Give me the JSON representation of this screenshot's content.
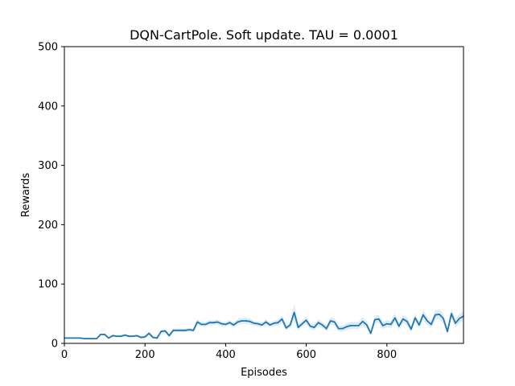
{
  "chart_data": {
    "type": "line",
    "title": "DQN-CartPole. Soft update. TAU = 0.0001",
    "xlabel": "Episodes",
    "ylabel": "Rewards",
    "xlim": [
      0,
      990
    ],
    "ylim": [
      0,
      500
    ],
    "xticks": [
      0,
      200,
      400,
      600,
      800
    ],
    "yticks": [
      0,
      100,
      200,
      300,
      400,
      500
    ],
    "grid": false,
    "line_color": "#1f77b4",
    "band_color": "#1f77b4",
    "series": [
      {
        "x": [
          0,
          10,
          20,
          30,
          40,
          50,
          60,
          70,
          80,
          90,
          100,
          110,
          120,
          130,
          140,
          150,
          160,
          170,
          180,
          190,
          200,
          210,
          220,
          230,
          240,
          250,
          260,
          270,
          280,
          290,
          300,
          310,
          320,
          330,
          340,
          350,
          360,
          370,
          380,
          390,
          400,
          410,
          420,
          430,
          440,
          450,
          460,
          470,
          480,
          490,
          500,
          510,
          520,
          530,
          540,
          550,
          560,
          570,
          580,
          590,
          600,
          610,
          620,
          630,
          640,
          650,
          660,
          670,
          680,
          690,
          700,
          710,
          720,
          730,
          740,
          750,
          760,
          770,
          780,
          790,
          800,
          810,
          820,
          830,
          840,
          850,
          860,
          870,
          880,
          890,
          900,
          910,
          920,
          930,
          940,
          950,
          960,
          970,
          980,
          990
        ],
        "y": [
          9,
          9,
          9,
          9,
          9,
          8,
          8,
          8,
          8,
          15,
          15,
          9,
          13,
          12,
          12,
          14,
          12,
          12,
          13,
          10,
          11,
          17,
          10,
          9,
          20,
          21,
          13,
          22,
          22,
          22,
          22,
          23,
          22,
          36,
          32,
          32,
          35,
          35,
          36,
          33,
          32,
          35,
          31,
          36,
          38,
          38,
          37,
          34,
          33,
          31,
          36,
          31,
          34,
          35,
          41,
          26,
          31,
          52,
          27,
          33,
          39,
          29,
          27,
          35,
          31,
          25,
          38,
          36,
          25,
          25,
          28,
          30,
          30,
          30,
          37,
          31,
          17,
          40,
          41,
          30,
          33,
          32,
          43,
          29,
          41,
          37,
          24,
          43,
          31,
          48,
          38,
          32,
          48,
          49,
          42,
          20,
          50,
          34,
          42,
          46
        ],
        "err": [
          1,
          1,
          1,
          1,
          1,
          1,
          1,
          1,
          1,
          2,
          2,
          1,
          2,
          2,
          2,
          2,
          2,
          2,
          2,
          2,
          2,
          3,
          2,
          2,
          3,
          3,
          2,
          3,
          3,
          3,
          3,
          3,
          3,
          5,
          4,
          4,
          4,
          4,
          4,
          4,
          4,
          4,
          4,
          5,
          5,
          5,
          5,
          4,
          4,
          4,
          5,
          4,
          4,
          5,
          6,
          4,
          5,
          14,
          5,
          5,
          6,
          5,
          5,
          6,
          5,
          5,
          6,
          6,
          5,
          5,
          6,
          6,
          6,
          6,
          7,
          6,
          4,
          7,
          7,
          6,
          6,
          6,
          7,
          6,
          7,
          7,
          5,
          7,
          6,
          8,
          7,
          6,
          8,
          8,
          8,
          5,
          8,
          7,
          8,
          8
        ]
      }
    ]
  }
}
